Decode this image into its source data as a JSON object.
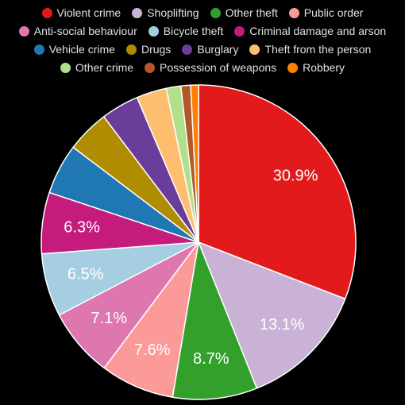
{
  "chart_data": {
    "type": "pie",
    "title": "",
    "legend_position": "top",
    "start_angle": "12 o'clock, clockwise",
    "categories": [
      "Violent crime",
      "Shoplifting",
      "Other theft",
      "Public order",
      "Anti-social behaviour",
      "Bicycle theft",
      "Criminal damage and arson",
      "Vehicle crime",
      "Drugs",
      "Burglary",
      "Theft from the person",
      "Other crime",
      "Possession of weapons",
      "Robbery"
    ],
    "values": [
      30.9,
      13.1,
      8.7,
      7.6,
      7.1,
      6.5,
      6.3,
      5.2,
      4.4,
      3.9,
      3.1,
      1.5,
      1.0,
      0.8
    ],
    "labels": [
      "30.9%",
      "13.1%",
      "8.7%",
      "7.6%",
      "7.1%",
      "6.5%",
      "6.3%",
      "",
      "",
      "",
      "",
      "",
      "",
      ""
    ],
    "colors": [
      "#e31a1c",
      "#cab2d6",
      "#33a02c",
      "#fb9a99",
      "#de77ae",
      "#a6cee3",
      "#c51b7d",
      "#1f78b4",
      "#b08d00",
      "#6a3d9a",
      "#fdbf6f",
      "#b2df8a",
      "#b15928",
      "#ff7f00"
    ],
    "background": "#000000"
  }
}
